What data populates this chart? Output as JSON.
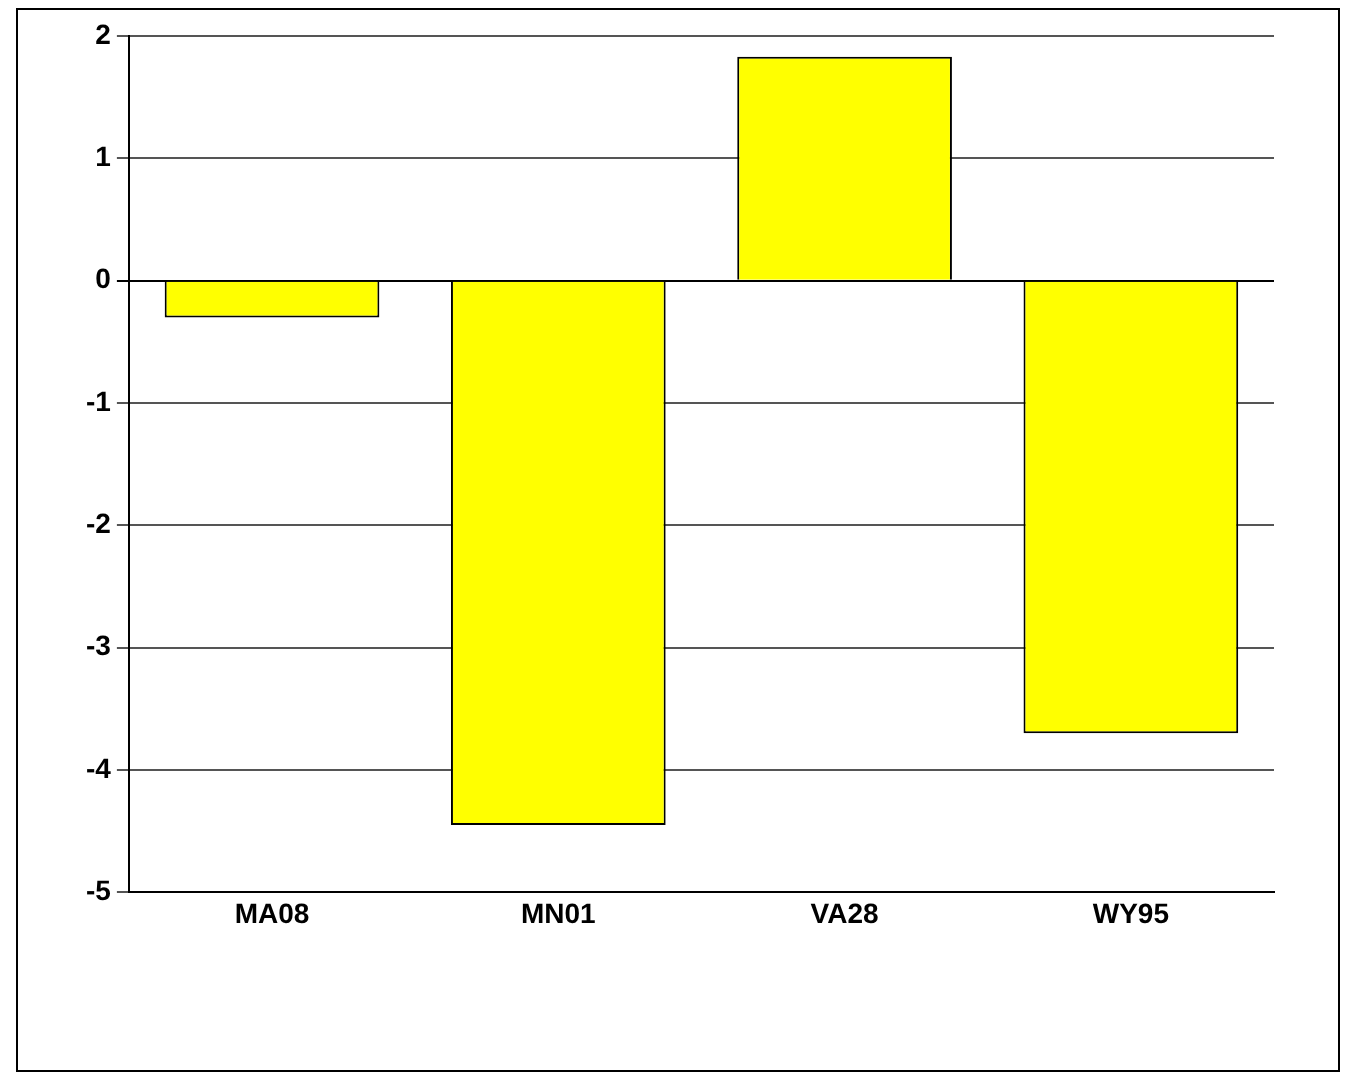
{
  "chart_data": {
    "type": "bar",
    "categories": [
      "MA08",
      "MN01",
      "VA28",
      "WY95"
    ],
    "values": [
      -0.3,
      -4.45,
      1.83,
      -3.7
    ],
    "color": "#ffff00",
    "ylim": [
      -5,
      2
    ],
    "yticks": [
      -5,
      -4,
      -3,
      -2,
      -1,
      0,
      1,
      2
    ],
    "grid": "y"
  }
}
